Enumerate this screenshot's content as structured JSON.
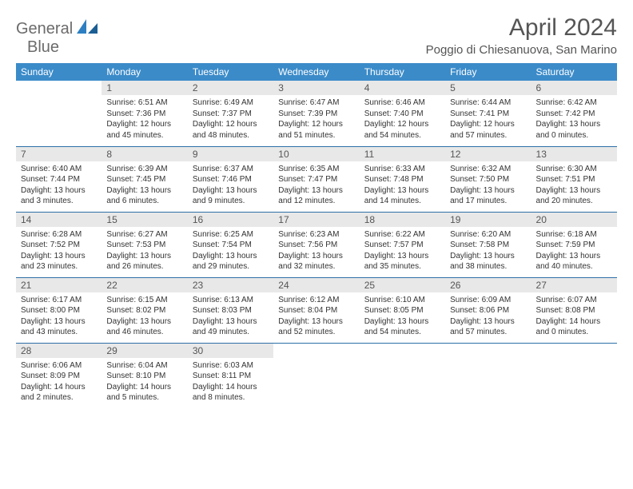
{
  "logo": {
    "line1": "General",
    "line2": "Blue"
  },
  "title": "April 2024",
  "location": "Poggio di Chiesanuova, San Marino",
  "colors": {
    "header_bg": "#3b8bc9",
    "header_text": "#ffffff",
    "daynum_bg": "#e8e8e8",
    "row_border": "#2d6fa8",
    "body_text": "#333333",
    "title_text": "#555555"
  },
  "day_headers": [
    "Sunday",
    "Monday",
    "Tuesday",
    "Wednesday",
    "Thursday",
    "Friday",
    "Saturday"
  ],
  "weeks": [
    [
      null,
      {
        "n": "1",
        "sunrise": "6:51 AM",
        "sunset": "7:36 PM",
        "daylight": "12 hours and 45 minutes."
      },
      {
        "n": "2",
        "sunrise": "6:49 AM",
        "sunset": "7:37 PM",
        "daylight": "12 hours and 48 minutes."
      },
      {
        "n": "3",
        "sunrise": "6:47 AM",
        "sunset": "7:39 PM",
        "daylight": "12 hours and 51 minutes."
      },
      {
        "n": "4",
        "sunrise": "6:46 AM",
        "sunset": "7:40 PM",
        "daylight": "12 hours and 54 minutes."
      },
      {
        "n": "5",
        "sunrise": "6:44 AM",
        "sunset": "7:41 PM",
        "daylight": "12 hours and 57 minutes."
      },
      {
        "n": "6",
        "sunrise": "6:42 AM",
        "sunset": "7:42 PM",
        "daylight": "13 hours and 0 minutes."
      }
    ],
    [
      {
        "n": "7",
        "sunrise": "6:40 AM",
        "sunset": "7:44 PM",
        "daylight": "13 hours and 3 minutes."
      },
      {
        "n": "8",
        "sunrise": "6:39 AM",
        "sunset": "7:45 PM",
        "daylight": "13 hours and 6 minutes."
      },
      {
        "n": "9",
        "sunrise": "6:37 AM",
        "sunset": "7:46 PM",
        "daylight": "13 hours and 9 minutes."
      },
      {
        "n": "10",
        "sunrise": "6:35 AM",
        "sunset": "7:47 PM",
        "daylight": "13 hours and 12 minutes."
      },
      {
        "n": "11",
        "sunrise": "6:33 AM",
        "sunset": "7:48 PM",
        "daylight": "13 hours and 14 minutes."
      },
      {
        "n": "12",
        "sunrise": "6:32 AM",
        "sunset": "7:50 PM",
        "daylight": "13 hours and 17 minutes."
      },
      {
        "n": "13",
        "sunrise": "6:30 AM",
        "sunset": "7:51 PM",
        "daylight": "13 hours and 20 minutes."
      }
    ],
    [
      {
        "n": "14",
        "sunrise": "6:28 AM",
        "sunset": "7:52 PM",
        "daylight": "13 hours and 23 minutes."
      },
      {
        "n": "15",
        "sunrise": "6:27 AM",
        "sunset": "7:53 PM",
        "daylight": "13 hours and 26 minutes."
      },
      {
        "n": "16",
        "sunrise": "6:25 AM",
        "sunset": "7:54 PM",
        "daylight": "13 hours and 29 minutes."
      },
      {
        "n": "17",
        "sunrise": "6:23 AM",
        "sunset": "7:56 PM",
        "daylight": "13 hours and 32 minutes."
      },
      {
        "n": "18",
        "sunrise": "6:22 AM",
        "sunset": "7:57 PM",
        "daylight": "13 hours and 35 minutes."
      },
      {
        "n": "19",
        "sunrise": "6:20 AM",
        "sunset": "7:58 PM",
        "daylight": "13 hours and 38 minutes."
      },
      {
        "n": "20",
        "sunrise": "6:18 AM",
        "sunset": "7:59 PM",
        "daylight": "13 hours and 40 minutes."
      }
    ],
    [
      {
        "n": "21",
        "sunrise": "6:17 AM",
        "sunset": "8:00 PM",
        "daylight": "13 hours and 43 minutes."
      },
      {
        "n": "22",
        "sunrise": "6:15 AM",
        "sunset": "8:02 PM",
        "daylight": "13 hours and 46 minutes."
      },
      {
        "n": "23",
        "sunrise": "6:13 AM",
        "sunset": "8:03 PM",
        "daylight": "13 hours and 49 minutes."
      },
      {
        "n": "24",
        "sunrise": "6:12 AM",
        "sunset": "8:04 PM",
        "daylight": "13 hours and 52 minutes."
      },
      {
        "n": "25",
        "sunrise": "6:10 AM",
        "sunset": "8:05 PM",
        "daylight": "13 hours and 54 minutes."
      },
      {
        "n": "26",
        "sunrise": "6:09 AM",
        "sunset": "8:06 PM",
        "daylight": "13 hours and 57 minutes."
      },
      {
        "n": "27",
        "sunrise": "6:07 AM",
        "sunset": "8:08 PM",
        "daylight": "14 hours and 0 minutes."
      }
    ],
    [
      {
        "n": "28",
        "sunrise": "6:06 AM",
        "sunset": "8:09 PM",
        "daylight": "14 hours and 2 minutes."
      },
      {
        "n": "29",
        "sunrise": "6:04 AM",
        "sunset": "8:10 PM",
        "daylight": "14 hours and 5 minutes."
      },
      {
        "n": "30",
        "sunrise": "6:03 AM",
        "sunset": "8:11 PM",
        "daylight": "14 hours and 8 minutes."
      },
      null,
      null,
      null,
      null
    ]
  ],
  "labels": {
    "sunrise": "Sunrise:",
    "sunset": "Sunset:",
    "daylight": "Daylight:"
  }
}
